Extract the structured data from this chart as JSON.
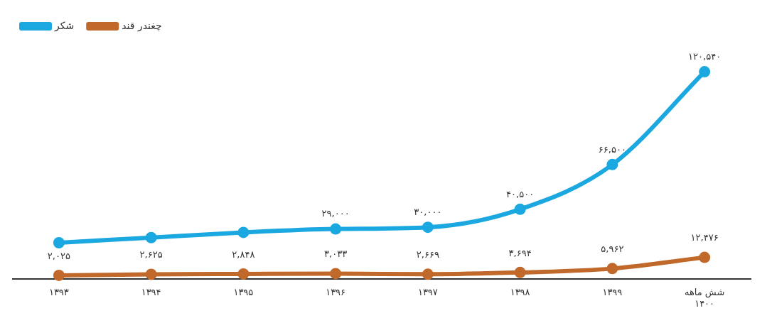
{
  "chart_data": {
    "type": "line",
    "categories": [
      "۱۳۹۳",
      "۱۳۹۴",
      "۱۳۹۵",
      "۱۳۹۶",
      "۱۳۹۷",
      "۱۳۹۸",
      "۱۳۹۹",
      "شش ماهه\n۱۴۰۰"
    ],
    "series": [
      {
        "name": "شکر",
        "color": "#1ba8e0",
        "values": [
          21000,
          24000,
          27000,
          29000,
          30000,
          40500,
          66500,
          120540
        ],
        "value_labels": [
          null,
          null,
          null,
          "۲۹,۰۰۰",
          "۳۰,۰۰۰",
          "۴۰,۵۰۰",
          "۶۶,۵۰۰",
          "۱۲۰,۵۴۰"
        ]
      },
      {
        "name": "چغندر قند",
        "color": "#c0692b",
        "values": [
          2025,
          2625,
          2848,
          3033,
          2669,
          3694,
          5962,
          12476
        ],
        "value_labels": [
          "۲,۰۲۵",
          "۲,۶۲۵",
          "۲,۸۴۸",
          "۳,۰۳۳",
          "۲,۶۶۹",
          "۳,۶۹۴",
          "۵,۹۶۲",
          "۱۲,۴۷۶"
        ]
      }
    ],
    "tick_labels": "x",
    "grid": false,
    "legend": "top left",
    "marker": "circle",
    "line_style": "solid"
  }
}
